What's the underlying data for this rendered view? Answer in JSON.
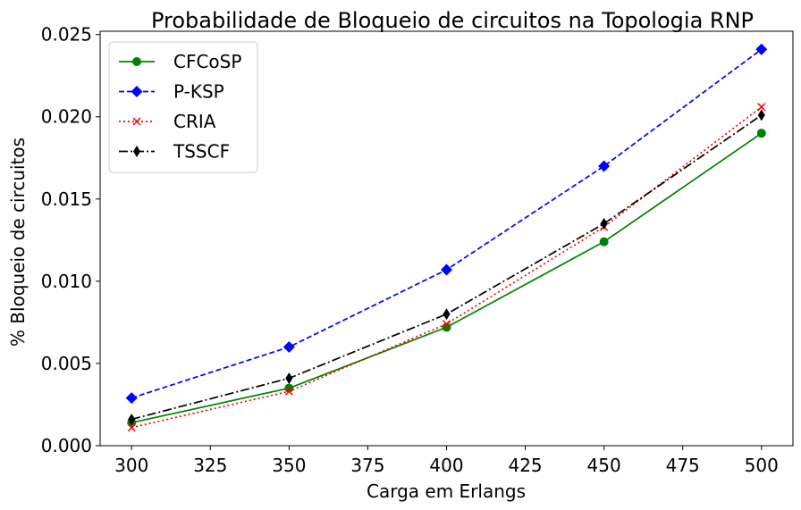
{
  "chart_data": {
    "type": "line",
    "title": "Probabilidade de Bloqueio de circuitos na Topologia RNP",
    "xlabel": "Carga em Erlangs",
    "ylabel": "% Bloqueio de circuitos",
    "xlim": [
      290,
      510
    ],
    "ylim": [
      0,
      0.0252
    ],
    "x_ticks": [
      300,
      325,
      350,
      375,
      400,
      425,
      450,
      475,
      500
    ],
    "x_tick_labels": [
      "300",
      "325",
      "350",
      "375",
      "400",
      "425",
      "450",
      "475",
      "500"
    ],
    "y_ticks": [
      0,
      0.005,
      0.01,
      0.015,
      0.02,
      0.025
    ],
    "y_tick_labels": [
      "0.000",
      "0.005",
      "0.010",
      "0.015",
      "0.020",
      "0.025"
    ],
    "grid": false,
    "legend_position": "top-left",
    "x": [
      300,
      350,
      400,
      450,
      500
    ],
    "series": [
      {
        "name": "CFCoSP",
        "color": "#008000",
        "dash": "solid",
        "marker": "circle",
        "values": [
          0.0014,
          0.0035,
          0.0072,
          0.0124,
          0.019
        ]
      },
      {
        "name": "P-KSP",
        "color": "#0000ff",
        "dash": "dashed",
        "marker": "diamond",
        "values": [
          0.0029,
          0.006,
          0.0107,
          0.017,
          0.0241
        ]
      },
      {
        "name": "CRIA",
        "color": "#ff0000",
        "dash": "dotted",
        "marker": "x",
        "values": [
          0.0011,
          0.0033,
          0.0074,
          0.0133,
          0.0206
        ]
      },
      {
        "name": "TSSCF",
        "color": "#000000",
        "dash": "dashdot",
        "marker": "thin-diamond",
        "values": [
          0.0016,
          0.0041,
          0.008,
          0.0135,
          0.0201
        ]
      }
    ]
  }
}
